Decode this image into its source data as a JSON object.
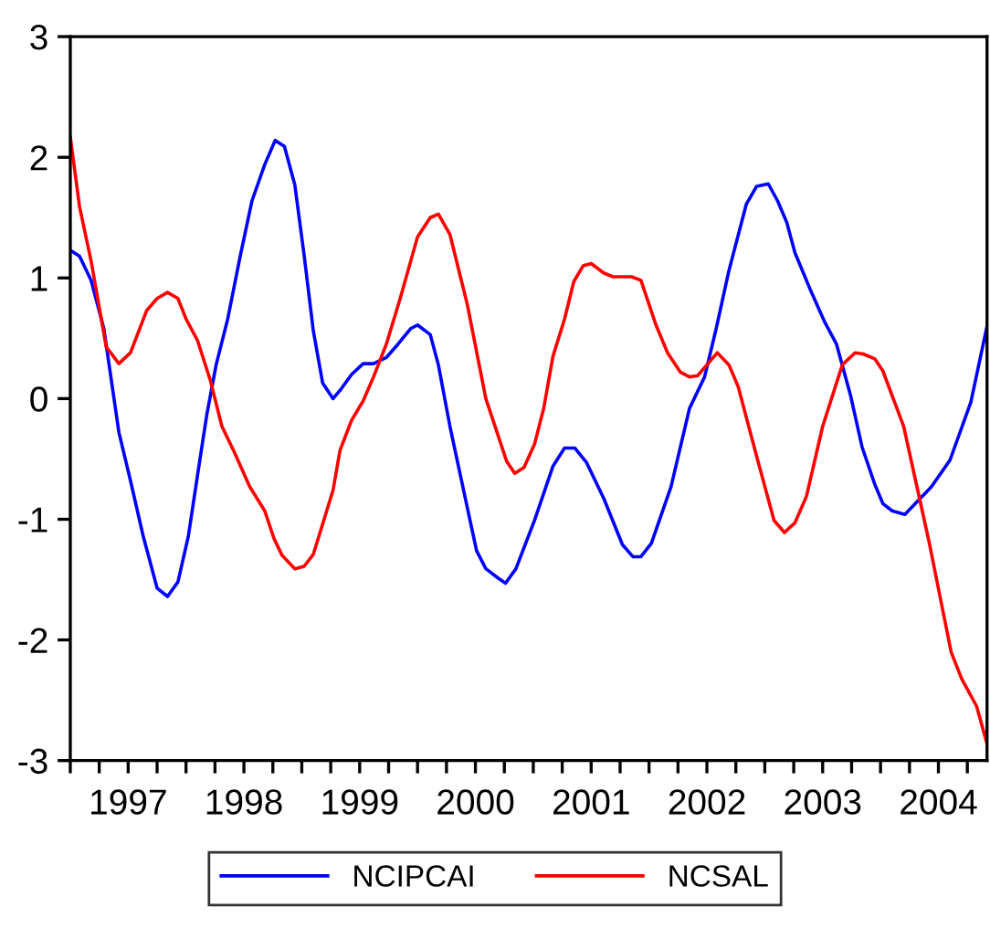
{
  "chart_data": {
    "type": "line",
    "xlim": [
      1997,
      2004.92
    ],
    "xticks": [
      {
        "value": 1997,
        "label": null
      },
      {
        "value": 1997.25,
        "label": null
      },
      {
        "value": 1997.5,
        "label": "1997"
      },
      {
        "value": 1997.75,
        "label": null
      },
      {
        "value": 1998,
        "label": null
      },
      {
        "value": 1998.25,
        "label": null
      },
      {
        "value": 1998.5,
        "label": "1998"
      },
      {
        "value": 1998.75,
        "label": null
      },
      {
        "value": 1999,
        "label": null
      },
      {
        "value": 1999.25,
        "label": null
      },
      {
        "value": 1999.5,
        "label": "1999"
      },
      {
        "value": 1999.75,
        "label": null
      },
      {
        "value": 2000,
        "label": null
      },
      {
        "value": 2000.25,
        "label": null
      },
      {
        "value": 2000.5,
        "label": "2000"
      },
      {
        "value": 2000.75,
        "label": null
      },
      {
        "value": 2001,
        "label": null
      },
      {
        "value": 2001.25,
        "label": null
      },
      {
        "value": 2001.5,
        "label": "2001"
      },
      {
        "value": 2001.75,
        "label": null
      },
      {
        "value": 2002,
        "label": null
      },
      {
        "value": 2002.25,
        "label": null
      },
      {
        "value": 2002.5,
        "label": "2002"
      },
      {
        "value": 2002.75,
        "label": null
      },
      {
        "value": 2003,
        "label": null
      },
      {
        "value": 2003.25,
        "label": null
      },
      {
        "value": 2003.5,
        "label": "2003"
      },
      {
        "value": 2003.75,
        "label": null
      },
      {
        "value": 2004,
        "label": null
      },
      {
        "value": 2004.25,
        "label": null
      },
      {
        "value": 2004.5,
        "label": "2004"
      },
      {
        "value": 2004.75,
        "label": null
      }
    ],
    "ylim": [
      -3,
      3
    ],
    "yticks": [
      -3,
      -2,
      -1,
      0,
      1,
      2,
      3
    ],
    "grid": false,
    "legend": "bottom",
    "marker": "none",
    "line_style": "solid",
    "series": [
      {
        "name": "NCIPCAI",
        "color": "#0000ff",
        "x": [
          1997.0,
          1997.08,
          1997.18,
          1997.29,
          1997.42,
          1997.52,
          1997.63,
          1997.75,
          1997.84,
          1997.93,
          1998.02,
          1998.1,
          1998.18,
          1998.26,
          1998.36,
          1998.47,
          1998.57,
          1998.68,
          1998.77,
          1998.85,
          1998.94,
          1999.02,
          1999.1,
          1999.18,
          1999.27,
          1999.34,
          1999.43,
          1999.53,
          1999.62,
          1999.73,
          1999.83,
          1999.94,
          2000.0,
          2000.11,
          2000.18,
          2000.28,
          2000.38,
          2000.51,
          2000.59,
          2000.7,
          2000.76,
          2000.85,
          2001.01,
          2001.17,
          2001.27,
          2001.36,
          2001.46,
          2001.61,
          2001.77,
          2001.86,
          2001.93,
          2002.02,
          2002.19,
          2002.35,
          2002.48,
          2002.58,
          2002.69,
          2002.84,
          2002.93,
          2003.03,
          2003.11,
          2003.19,
          2003.26,
          2003.39,
          2003.52,
          2003.62,
          2003.74,
          2003.84,
          2003.95,
          2004.02,
          2004.1,
          2004.21,
          2004.31,
          2004.44,
          2004.6,
          2004.78,
          2004.92
        ],
        "values": [
          1.23,
          1.18,
          0.98,
          0.58,
          -0.28,
          -0.68,
          -1.14,
          -1.57,
          -1.64,
          -1.52,
          -1.14,
          -0.63,
          -0.13,
          0.28,
          0.66,
          1.19,
          1.64,
          1.94,
          2.14,
          2.09,
          1.77,
          1.19,
          0.56,
          0.13,
          0.0,
          0.08,
          0.2,
          0.29,
          0.29,
          0.34,
          0.45,
          0.58,
          0.61,
          0.53,
          0.28,
          -0.23,
          -0.68,
          -1.26,
          -1.41,
          -1.49,
          -1.53,
          -1.41,
          -1.01,
          -0.56,
          -0.41,
          -0.41,
          -0.53,
          -0.83,
          -1.21,
          -1.31,
          -1.31,
          -1.2,
          -0.73,
          -0.08,
          0.18,
          0.58,
          1.06,
          1.61,
          1.76,
          1.78,
          1.64,
          1.46,
          1.21,
          0.91,
          0.63,
          0.45,
          0.03,
          -0.4,
          -0.71,
          -0.87,
          -0.93,
          -0.96,
          -0.86,
          -0.73,
          -0.51,
          -0.03,
          0.6
        ]
      },
      {
        "name": "NCSAL",
        "color": "#ff0000",
        "x": [
          1997.0,
          1997.08,
          1997.18,
          1997.31,
          1997.42,
          1997.52,
          1997.66,
          1997.75,
          1997.84,
          1997.93,
          1998.0,
          1998.1,
          1998.21,
          1998.31,
          1998.42,
          1998.55,
          1998.68,
          1998.76,
          1998.83,
          1998.94,
          1999.02,
          1999.1,
          1999.27,
          1999.33,
          1999.43,
          1999.53,
          1999.62,
          1999.73,
          1999.85,
          2000.0,
          2000.11,
          2000.18,
          2000.28,
          2000.43,
          2000.59,
          2000.77,
          2000.84,
          2000.92,
          2001.01,
          2001.09,
          2001.17,
          2001.27,
          2001.35,
          2001.43,
          2001.5,
          2001.61,
          2001.69,
          2001.85,
          2001.93,
          2002.06,
          2002.16,
          2002.27,
          2002.35,
          2002.42,
          2002.59,
          2002.69,
          2002.77,
          2002.93,
          2003.08,
          2003.17,
          2003.26,
          2003.36,
          2003.5,
          2003.67,
          2003.78,
          2003.85,
          2003.95,
          2004.02,
          2004.2,
          2004.28,
          2004.42,
          2004.52,
          2004.61,
          2004.7,
          2004.83,
          2004.92
        ],
        "values": [
          2.17,
          1.59,
          1.14,
          0.43,
          0.29,
          0.38,
          0.73,
          0.83,
          0.88,
          0.83,
          0.66,
          0.48,
          0.15,
          -0.23,
          -0.45,
          -0.73,
          -0.93,
          -1.16,
          -1.3,
          -1.41,
          -1.39,
          -1.29,
          -0.76,
          -0.43,
          -0.18,
          -0.02,
          0.18,
          0.45,
          0.83,
          1.34,
          1.5,
          1.53,
          1.36,
          0.78,
          0.0,
          -0.52,
          -0.62,
          -0.57,
          -0.38,
          -0.08,
          0.35,
          0.66,
          0.97,
          1.1,
          1.12,
          1.04,
          1.01,
          1.01,
          0.98,
          0.61,
          0.38,
          0.22,
          0.18,
          0.19,
          0.38,
          0.28,
          0.1,
          -0.48,
          -1.01,
          -1.11,
          -1.03,
          -0.81,
          -0.23,
          0.28,
          0.38,
          0.37,
          0.33,
          0.23,
          -0.23,
          -0.58,
          -1.19,
          -1.67,
          -2.1,
          -2.32,
          -2.55,
          -2.86
        ]
      }
    ]
  }
}
